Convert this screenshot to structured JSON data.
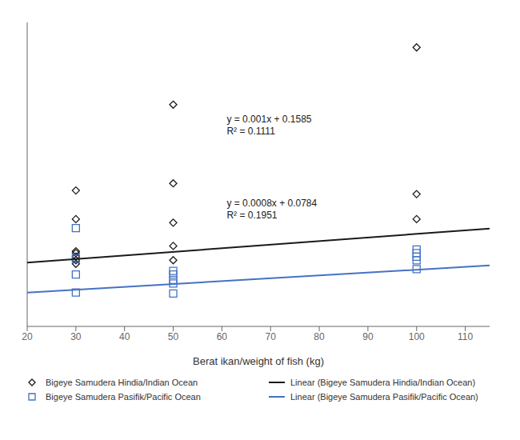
{
  "chart_data": {
    "type": "scatter",
    "x_label": "Berat ikan/weight of fish (kg)",
    "xlim": [
      20,
      115
    ],
    "ylim": [
      0.0,
      0.85
    ],
    "xticks": [
      20,
      30,
      40,
      50,
      60,
      70,
      80,
      90,
      100,
      110
    ],
    "yticks": [
      0.0,
      0.1,
      0.2,
      0.3,
      0.4,
      0.5,
      0.6,
      0.7,
      0.8
    ],
    "tick_labels": "x",
    "grid": false,
    "legend": "bottom",
    "series": [
      {
        "name": "Bigeye Samudera Hindia/Indian Ocean",
        "type": "scatter",
        "marker": "diamond",
        "color": "#1a1a1a",
        "x": [
          30,
          30,
          30,
          30,
          30,
          30,
          30,
          50,
          50,
          50,
          50,
          50,
          100,
          100,
          100
        ],
        "values": [
          0.38,
          0.3,
          0.21,
          0.205,
          0.195,
          0.185,
          0.175,
          0.62,
          0.4,
          0.29,
          0.225,
          0.185,
          0.78,
          0.37,
          0.3
        ]
      },
      {
        "name": "Bigeye Samudera Pasifik/Pacific Ocean",
        "type": "scatter",
        "marker": "square",
        "color": "#4472C4",
        "x": [
          30,
          30,
          30,
          30,
          50,
          50,
          50,
          50,
          50,
          100,
          100,
          100,
          100,
          100
        ],
        "values": [
          0.275,
          0.19,
          0.145,
          0.095,
          0.155,
          0.145,
          0.13,
          0.12,
          0.092,
          0.215,
          0.205,
          0.195,
          0.185,
          0.16
        ]
      },
      {
        "name": "Linear (Bigeye Samudera Hindia/Indian Ocean)",
        "type": "line",
        "color": "#1a1a1a",
        "x": [
          20,
          115
        ],
        "values": [
          0.1785,
          0.2735
        ]
      },
      {
        "name": "Linear (Bigeye Samudera Pasifik/Pacific Ocean)",
        "type": "line",
        "color": "#4472C4",
        "x": [
          20,
          115
        ],
        "values": [
          0.0944,
          0.1704
        ]
      }
    ],
    "annotations": [
      {
        "text": "y = 0.001x + 0.1585\nR² = 0.1111",
        "x": 61,
        "y": 0.595,
        "color": "#1a1a1a"
      },
      {
        "text": "y = 0.0008x + 0.0784\nR² = 0.1951",
        "x": 61,
        "y": 0.36,
        "color": "#1a1a1a"
      }
    ]
  }
}
